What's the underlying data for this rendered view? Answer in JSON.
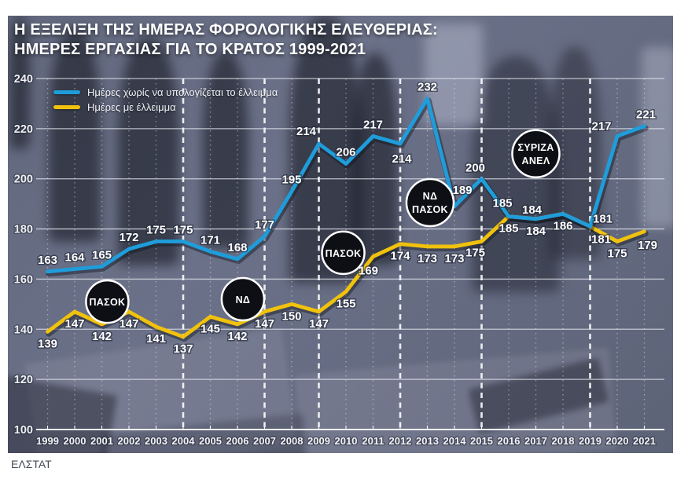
{
  "title": {
    "line1": "Η ΕΞΕΛΙΞΗ ΤΗΣ ΗΜΕΡΑΣ ΦΟΡΟΛΟΓΙΚΗΣ ΕΛΕΥΘΕΡΙΑΣ:",
    "line2": "ΗΜΕΡΕΣ ΕΡΓΑΣΙΑΣ ΓΙΑ ΤΟ ΚΡΑΤΟΣ 1999-2021"
  },
  "source": "ΕΛΣΤΑΤ",
  "legend": [
    {
      "label": "Ημέρες χωρίς να υπολογίζεται το έλλειμμα",
      "color": "#1f9ddb"
    },
    {
      "label": "Ημέρες με έλλειμμα",
      "color": "#f1c20c"
    }
  ],
  "chart_data": {
    "type": "line",
    "x": [
      1999,
      2000,
      2001,
      2002,
      2003,
      2004,
      2005,
      2006,
      2007,
      2008,
      2009,
      2010,
      2011,
      2012,
      2013,
      2014,
      2015,
      2016,
      2017,
      2018,
      2019,
      2020,
      2021
    ],
    "series": [
      {
        "name": "Ημέρες χωρίς να υπολογίζεται το έλλειμμα",
        "color": "#1f9ddb",
        "values": [
          163,
          164,
          165,
          172,
          175,
          175,
          171,
          168,
          177,
          195,
          214,
          206,
          217,
          214,
          232,
          189,
          200,
          185,
          184,
          186,
          181,
          217,
          221
        ],
        "label_hidden_years": [
          2018
        ]
      },
      {
        "name": "Ημέρες με έλλειμμα",
        "color": "#f1c20c",
        "values": [
          139,
          147,
          142,
          147,
          141,
          137,
          145,
          142,
          147,
          150,
          147,
          155,
          169,
          174,
          173,
          173,
          175,
          185,
          184,
          186,
          181,
          175,
          179
        ],
        "label_hidden_years": []
      }
    ],
    "ylim": [
      100,
      240
    ],
    "yticks": [
      100,
      120,
      140,
      160,
      180,
      200,
      220,
      240
    ],
    "grid": "on",
    "legend_position": "top-left",
    "election_years": [
      2004,
      2007,
      2009,
      2012,
      2015,
      2019
    ],
    "annotations": [
      {
        "lines": [
          "ΠΑΣΟΚ"
        ],
        "year": 2001.2,
        "value": 151
      },
      {
        "lines": [
          "ΝΔ"
        ],
        "year": 2006.2,
        "value": 152
      },
      {
        "lines": [
          "ΠΑΣΟΚ"
        ],
        "year": 2009.9,
        "value": 170.5
      },
      {
        "lines": [
          "ΝΔ",
          "ΠΑΣΟΚ"
        ],
        "year": 2013.1,
        "value": 190.5
      },
      {
        "lines": [
          "ΣΥΡΙΖΑ",
          "ΑΝΕΛ"
        ],
        "year": 2017.0,
        "value": 210
      }
    ]
  }
}
